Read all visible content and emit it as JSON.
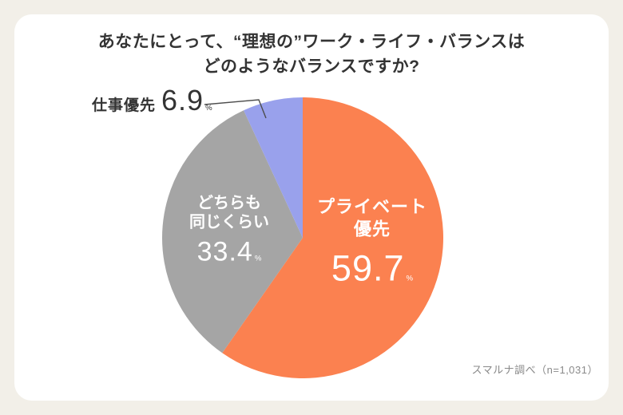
{
  "page": {
    "background_color": "#F2EFE8",
    "card_color": "#FFFFFF"
  },
  "title": {
    "line1": "あなたにとって、“理想の”ワーク・ライフ・バランスは",
    "line2": "どのようなバランスですか?"
  },
  "source": "スマルナ調べ（n=1,031）",
  "chart_data": {
    "type": "pie",
    "title": "あなたにとって、“理想の”ワーク・ライフ・バランスはどのようなバランスですか?",
    "start_angle_deg": -90,
    "direction": "clockwise",
    "legend_position": "none",
    "slices": [
      {
        "key": "private-first",
        "label": "プライベート優先",
        "label_line1": "プライベート",
        "label_line2": "優先",
        "value": 59.7,
        "value_text": "59.7",
        "unit": "%",
        "color": "#FB8150",
        "text_color": "#FFFFFF",
        "label_position": "inside"
      },
      {
        "key": "both-equal",
        "label": "どちらも同じくらい",
        "label_line1": "どちらも",
        "label_line2": "同じくらい",
        "value": 33.4,
        "value_text": "33.4",
        "unit": "%",
        "color": "#A5A5A5",
        "text_color": "#FFFFFF",
        "label_position": "inside"
      },
      {
        "key": "work-first",
        "label": "仕事優先",
        "value": 6.9,
        "value_text": "6.9",
        "unit": "%",
        "color": "#99A1EC",
        "text_color": "#333333",
        "label_position": "outside-top-left"
      }
    ]
  }
}
